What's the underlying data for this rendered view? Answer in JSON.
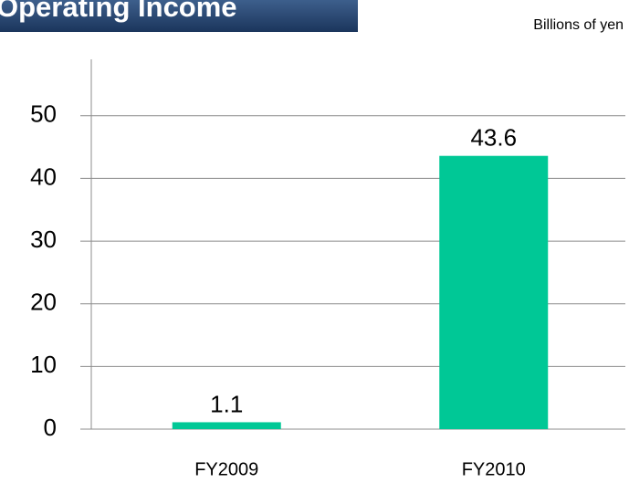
{
  "chart_data": {
    "type": "bar",
    "title": "Operating Income",
    "unit_label": "Billions of yen",
    "categories": [
      "FY2009",
      "FY2010"
    ],
    "values": [
      1.1,
      43.6
    ],
    "color": "#00c896",
    "ylim": [
      0,
      59
    ],
    "yticks": [
      0,
      10,
      20,
      30,
      40,
      50
    ],
    "grid": true
  }
}
